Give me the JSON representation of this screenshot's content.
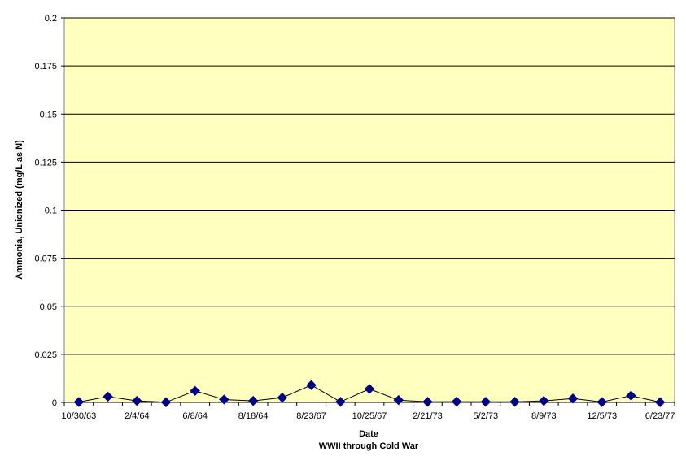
{
  "chart_data": {
    "type": "line",
    "ylabel": "Ammonia, Unionized (mg/L as N)",
    "xlabel": "Date",
    "subtitle": "WWII through Cold War",
    "ylim": [
      0,
      0.2
    ],
    "y_ticks": [
      "0",
      "0.025",
      "0.05",
      "0.075",
      "0.1",
      "0.125",
      "0.15",
      "0.175",
      "0.2"
    ],
    "x_tick_labels": [
      "10/30/63",
      "2/4/64",
      "6/8/64",
      "8/18/64",
      "8/23/67",
      "10/25/67",
      "2/21/73",
      "5/2/73",
      "8/9/73",
      "12/5/73",
      "6/23/77"
    ],
    "grid": true,
    "legend": "none",
    "series": [
      {
        "values": [
          0.0002,
          0.003,
          0.0008,
          0.0001,
          0.006,
          0.0015,
          0.0008,
          0.0025,
          0.009,
          0.0003,
          0.007,
          0.0012,
          0.0003,
          0.0004,
          0.0003,
          0.0003,
          0.0008,
          0.002,
          0.0002,
          0.0035,
          0.0001
        ]
      }
    ],
    "colors": {
      "plot_background": "#ffffc0",
      "marker": "#000080",
      "line": "#000000",
      "gridline": "#000000"
    }
  }
}
